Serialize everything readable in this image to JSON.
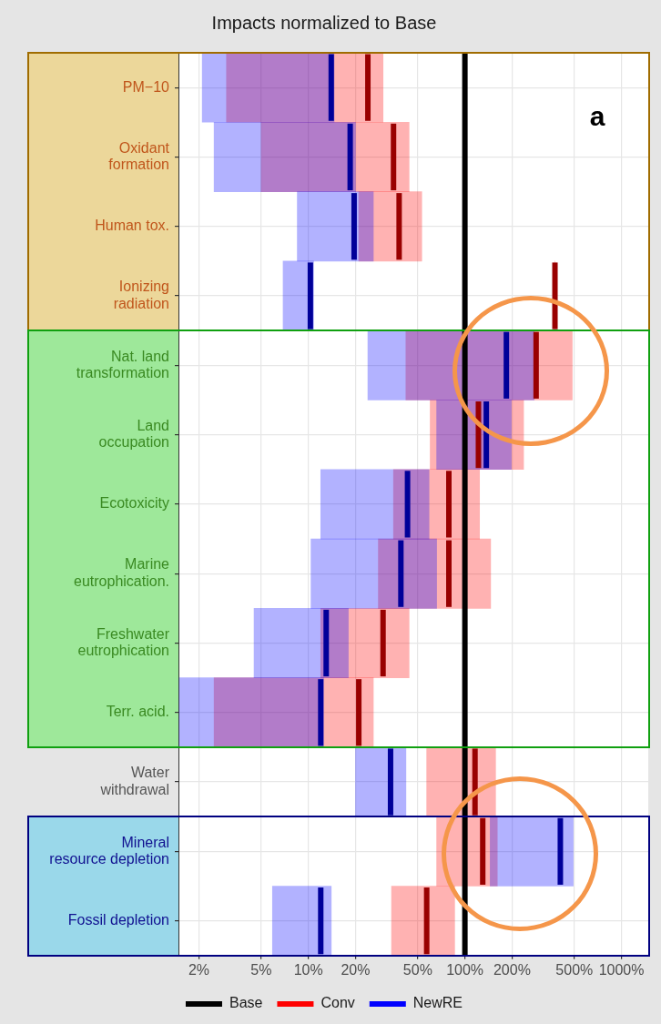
{
  "chart_data": {
    "type": "box",
    "orientation": "horizontal",
    "title": "Impacts normalized to Base",
    "categories": [
      "PM−10",
      "Oxidant\nformation",
      "Human tox.",
      "Ionizing\nradiation",
      "Nat. land\ntransformation",
      "Land\noccupation",
      "Ecotoxicity",
      "Marine\neutrophication.",
      "Freshwater\neutrophication",
      "Terr. acid.",
      "Water\nwithdrawal",
      "Mineral\nresource depletion",
      "Fossil depletion"
    ],
    "series": [
      {
        "type": "box",
        "name": "Conv",
        "color": "#ff0000",
        "boxes": [
          {
            "low": 3.0,
            "q1": 3.0,
            "median": 24,
            "q3": 30,
            "high": 30
          },
          {
            "low": 5,
            "q1": 5,
            "median": 35,
            "q3": 44,
            "high": 44
          },
          {
            "low": 21,
            "q1": 21,
            "median": 38,
            "q3": 53,
            "high": 53
          },
          {
            "low": 376,
            "q1": 376,
            "median": 376,
            "q3": 376,
            "high": 376
          },
          {
            "low": 42,
            "q1": 42,
            "median": 285,
            "q3": 485,
            "high": 485
          },
          {
            "low": 60,
            "q1": 60,
            "median": 122,
            "q3": 237,
            "high": 237
          },
          {
            "low": 35,
            "q1": 35,
            "median": 79,
            "q3": 124,
            "high": 124
          },
          {
            "low": 28,
            "q1": 28,
            "median": 79,
            "q3": 146,
            "high": 146
          },
          {
            "low": 12,
            "q1": 12,
            "median": 30,
            "q3": 44,
            "high": 44
          },
          {
            "low": 2.5,
            "q1": 2.5,
            "median": 21,
            "q3": 26,
            "high": 26
          },
          {
            "low": 57,
            "q1": 57,
            "median": 116,
            "q3": 157,
            "high": 157
          },
          {
            "low": 66,
            "q1": 66,
            "median": 130,
            "q3": 161,
            "high": 161
          },
          {
            "low": 34,
            "q1": 34,
            "median": 57,
            "q3": 86,
            "high": 86
          }
        ]
      },
      {
        "type": "box",
        "name": "NewRE",
        "color": "#0000ff",
        "boxes": [
          {
            "low": 2.1,
            "q1": 2.1,
            "median": 14,
            "q3": 14.6,
            "high": 14.6
          },
          {
            "low": 2.5,
            "q1": 2.5,
            "median": 18.5,
            "q3": 20,
            "high": 20
          },
          {
            "low": 8.5,
            "q1": 8.5,
            "median": 19.6,
            "q3": 26,
            "high": 26
          },
          {
            "low": 6.9,
            "q1": 6.9,
            "median": 10.3,
            "q3": 10.8,
            "high": 10.8
          },
          {
            "low": 24,
            "q1": 24,
            "median": 184,
            "q3": 277,
            "high": 277
          },
          {
            "low": 66,
            "q1": 66,
            "median": 137,
            "q3": 198,
            "high": 198
          },
          {
            "low": 12,
            "q1": 12,
            "median": 43,
            "q3": 59,
            "high": 59
          },
          {
            "low": 10.4,
            "q1": 10.4,
            "median": 39,
            "q3": 66,
            "high": 66
          },
          {
            "low": 4.5,
            "q1": 4.5,
            "median": 13,
            "q3": 18,
            "high": 18
          },
          {
            "low": 1.5,
            "q1": 1.5,
            "median": 12,
            "q3": 12.5,
            "high": 12.5
          },
          {
            "low": 20,
            "q1": 20,
            "median": 33.5,
            "q3": 42,
            "high": 42
          },
          {
            "low": 145,
            "q1": 145,
            "median": 407,
            "q3": 492,
            "high": 492
          },
          {
            "low": 5.9,
            "q1": 5.9,
            "median": 12,
            "q3": 14,
            "high": 14
          }
        ]
      }
    ],
    "ref_lines": [
      {
        "axis": "x",
        "value": 100,
        "label": "Base",
        "color": "#000000"
      }
    ],
    "log": "x",
    "xlim": [
      1.48,
      1483
    ],
    "xticks": [
      {
        "value": 2,
        "label": "2%"
      },
      {
        "value": 5,
        "label": "5%"
      },
      {
        "value": 10,
        "label": "10%"
      },
      {
        "value": 20,
        "label": "20%"
      },
      {
        "value": 50,
        "label": "50%"
      },
      {
        "value": 100,
        "label": "100%"
      },
      {
        "value": 200,
        "label": "200%"
      },
      {
        "value": 500,
        "label": "500%"
      },
      {
        "value": 1000,
        "label": "1000%"
      }
    ],
    "grid": true,
    "legend": "bottom",
    "annotations": [
      "a"
    ]
  }
}
